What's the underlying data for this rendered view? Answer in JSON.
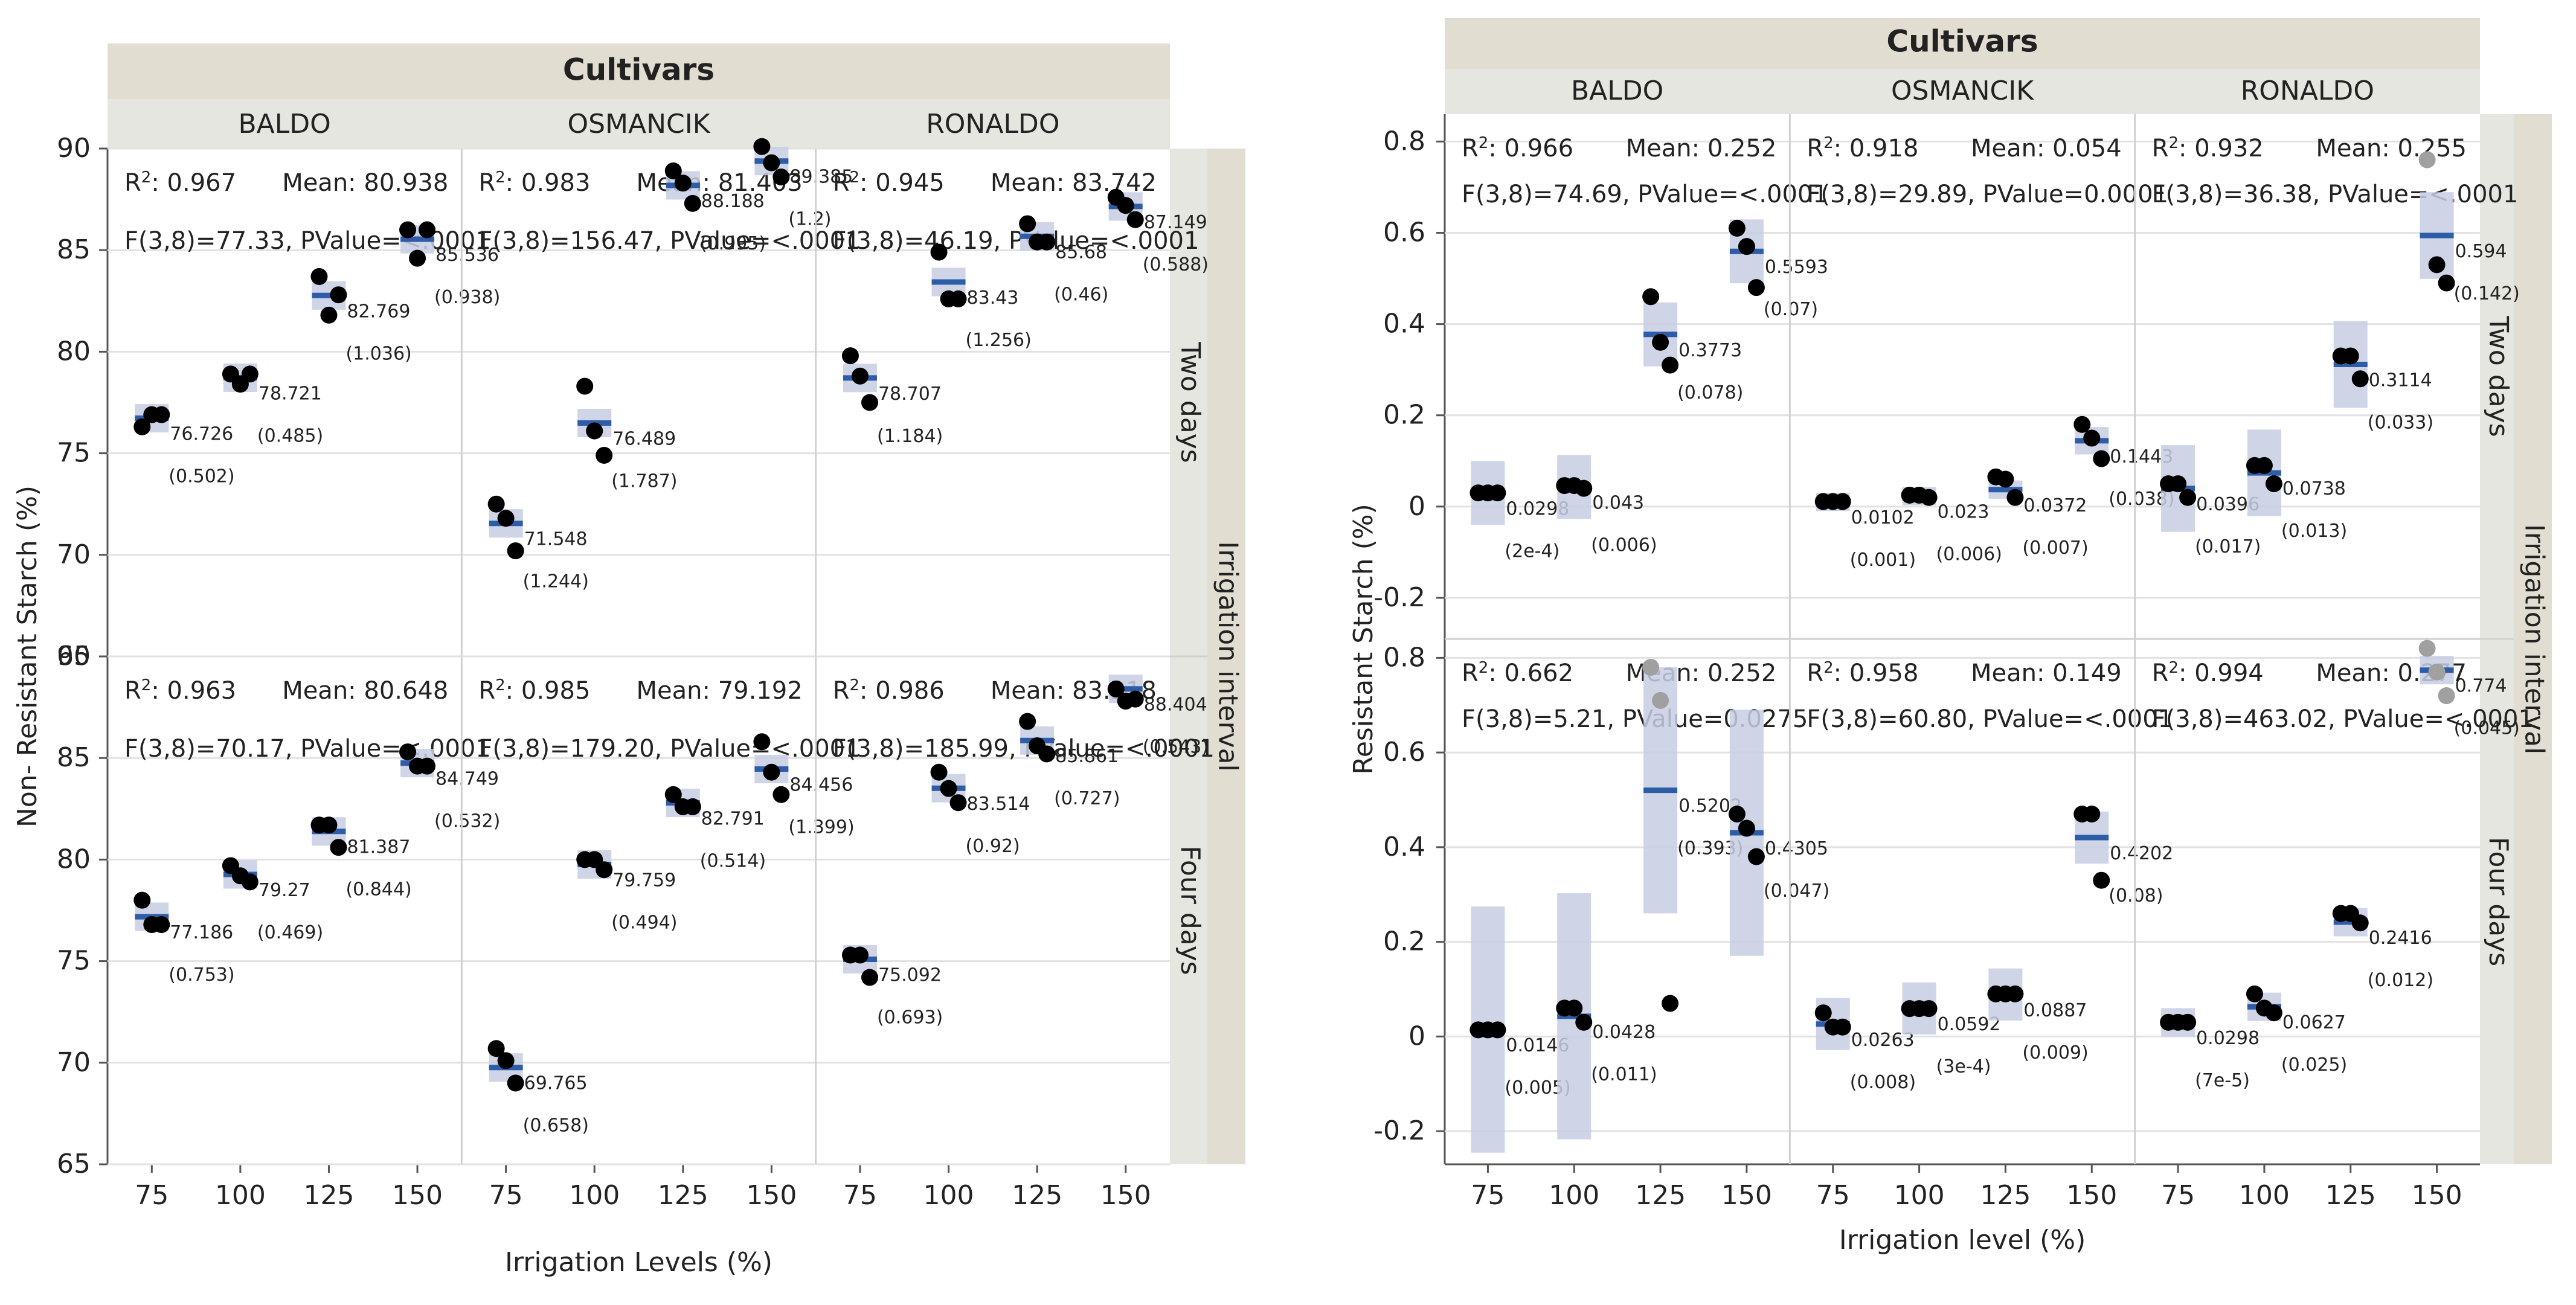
{
  "chart_data": [
    {
      "type": "scatter",
      "title": "Cultivars",
      "ylabel": "Non- Resistant Starch (%)",
      "xlabel": "Irrigation Levels (%)",
      "facet_row_title": "Irrigation interval",
      "cultivars": [
        "BALDO",
        "OSMANCIK",
        "RONALDO"
      ],
      "intervals": [
        "Two days",
        "Four days"
      ],
      "x_categories": [
        "75",
        "100",
        "125",
        "150"
      ],
      "ylim": [
        65,
        90
      ],
      "yticks": [
        "65",
        "70",
        "75",
        "80",
        "85",
        "90"
      ],
      "panels": [
        {
          "cultivar": "BALDO",
          "interval": "Two days",
          "r2": "0.967",
          "mean": "Mean: 80.938",
          "f": "F(3,8)=77.33, PValue=<.0001",
          "means": [
            76.726,
            78.721,
            82.769,
            85.536
          ],
          "labels": [
            "76.726",
            "78.721",
            "82.769",
            "85.536"
          ],
          "se_labels": [
            "(0.502)",
            "(0.485)",
            "(1.036)",
            "(0.938)"
          ],
          "points": [
            [
              76.3,
              76.9,
              76.9
            ],
            [
              78.9,
              78.4,
              78.9
            ],
            [
              83.7,
              81.8,
              82.8
            ],
            [
              86.0,
              84.6,
              86.0
            ]
          ]
        },
        {
          "cultivar": "OSMANCIK",
          "interval": "Two days",
          "r2": "0.983",
          "mean": "Mean: 81.403",
          "f": "F(3,8)=156.47, PValue=<.0001",
          "means": [
            71.548,
            76.489,
            88.188,
            89.385
          ],
          "labels": [
            "71.548",
            "76.489",
            "88.188",
            "89.385"
          ],
          "se_labels": [
            "(1.244)",
            "(1.787)",
            "(0.995)",
            "(1.2)"
          ],
          "points": [
            [
              72.5,
              71.8,
              70.2
            ],
            [
              78.3,
              76.1,
              74.9
            ],
            [
              88.9,
              88.3,
              87.3
            ],
            [
              90.1,
              89.3,
              88.6
            ]
          ]
        },
        {
          "cultivar": "RONALDO",
          "interval": "Two days",
          "r2": "0.945",
          "mean": "Mean: 83.742",
          "f": "F(3,8)=46.19, PValue=<.0001",
          "means": [
            78.707,
            83.43,
            85.68,
            87.149
          ],
          "labels": [
            "78.707",
            "83.43",
            "85.68",
            "87.149"
          ],
          "se_labels": [
            "(1.184)",
            "(1.256)",
            "(0.46)",
            "(0.588)"
          ],
          "points": [
            [
              79.8,
              78.8,
              77.5
            ],
            [
              84.9,
              82.6,
              82.6
            ],
            [
              86.3,
              85.4,
              85.4
            ],
            [
              87.6,
              87.2,
              86.5
            ]
          ]
        },
        {
          "cultivar": "BALDO",
          "interval": "Four days",
          "r2": "0.963",
          "mean": "Mean: 80.648",
          "f": "F(3,8)=70.17, PValue=<.0001",
          "means": [
            77.186,
            79.27,
            81.387,
            84.749
          ],
          "labels": [
            "77.186",
            "79.27",
            "81.387",
            "84.749"
          ],
          "se_labels": [
            "(0.753)",
            "(0.469)",
            "(0.844)",
            "(0.532)"
          ],
          "points": [
            [
              78.0,
              76.8,
              76.8
            ],
            [
              79.7,
              79.2,
              78.9
            ],
            [
              81.7,
              81.7,
              80.6
            ],
            [
              85.3,
              84.6,
              84.6
            ]
          ]
        },
        {
          "cultivar": "OSMANCIK",
          "interval": "Four days",
          "r2": "0.985",
          "mean": "Mean: 79.192",
          "f": "F(3,8)=179.20, PValue=<.0001",
          "means": [
            69.765,
            79.759,
            82.791,
            84.456
          ],
          "labels": [
            "69.765",
            "79.759",
            "82.791",
            "84.456"
          ],
          "se_labels": [
            "(0.658)",
            "(0.494)",
            "(0.514)",
            "(1.399)"
          ],
          "points": [
            [
              70.7,
              70.1,
              69.0
            ],
            [
              80.0,
              80.0,
              79.5
            ],
            [
              83.2,
              82.6,
              82.6
            ],
            [
              85.8,
              84.3,
              83.2
            ]
          ]
        },
        {
          "cultivar": "RONALDO",
          "interval": "Four days",
          "r2": "0.986",
          "mean": "Mean: 83.218",
          "f": "F(3,8)=185.99, PValue=<.0001",
          "means": [
            75.092,
            83.514,
            85.861,
            88.404
          ],
          "labels": [
            "75.092",
            "83.514",
            "85.861",
            "88.404"
          ],
          "se_labels": [
            "(0.693)",
            "(0.92)",
            "(0.727)",
            "(0.543)"
          ],
          "points": [
            [
              75.3,
              75.3,
              74.2
            ],
            [
              84.3,
              83.5,
              82.8
            ],
            [
              86.8,
              85.6,
              85.2
            ],
            [
              88.4,
              87.8,
              87.9
            ]
          ]
        }
      ]
    },
    {
      "type": "scatter",
      "title": "Cultivars",
      "ylabel": "Resistant Starch (%)",
      "xlabel": "Irrigation level (%)",
      "facet_row_title": "Irrigation interval",
      "cultivars": [
        "BALDO",
        "OSMANCIK",
        "RONALDO"
      ],
      "intervals": [
        "Two days",
        "Four days"
      ],
      "x_categories": [
        "75",
        "100",
        "125",
        "150"
      ],
      "row_ylims": [
        [
          -0.29,
          0.86
        ],
        [
          -0.27,
          0.84
        ]
      ],
      "row_yticks": [
        [
          "-0.2",
          "0",
          "0.2",
          "0.4",
          "0.6",
          "0.8"
        ],
        [
          "-0.2",
          "0",
          "0.2",
          "0.4",
          "0.6",
          "0.8"
        ]
      ],
      "panels": [
        {
          "cultivar": "BALDO",
          "interval": "Two days",
          "r2": "0.966",
          "mean": "Mean: 0.252",
          "f": "F(3,8)=74.69, PValue=<.0001",
          "means": [
            0.0298,
            0.043,
            0.3773,
            0.5593
          ],
          "labels": [
            "0.0298",
            "0.043",
            "0.3773",
            "0.5593"
          ],
          "se_labels": [
            "(2e-4)",
            "(0.006)",
            "(0.078)",
            "(0.07)"
          ],
          "ci_half": [
            0.07,
            0.07,
            0.07,
            0.07
          ],
          "points": [
            [
              0.03,
              0.03,
              0.03
            ],
            [
              0.046,
              0.046,
              0.04
            ],
            [
              0.46,
              0.36,
              0.31
            ],
            [
              0.61,
              0.57,
              0.48
            ]
          ]
        },
        {
          "cultivar": "OSMANCIK",
          "interval": "Two days",
          "r2": "0.918",
          "mean": "Mean: 0.054",
          "f": "F(3,8)=29.89, PValue=0.0001",
          "means": [
            0.0102,
            0.023,
            0.0372,
            0.1443
          ],
          "labels": [
            "0.0102",
            "0.023",
            "0.0372",
            "0.1443"
          ],
          "se_labels": [
            "(0.001)",
            "(0.006)",
            "(0.007)",
            "(0.038)"
          ],
          "ci_half": [
            0.02,
            0.02,
            0.02,
            0.03
          ],
          "points": [
            [
              0.011,
              0.011,
              0.011
            ],
            [
              0.025,
              0.025,
              0.02
            ],
            [
              0.065,
              0.06,
              0.02
            ],
            [
              0.18,
              0.15,
              0.105
            ]
          ]
        },
        {
          "cultivar": "RONALDO",
          "interval": "Two days",
          "r2": "0.932",
          "mean": "Mean: 0.255",
          "f": "F(3,8)=36.38, PValue=<.0001",
          "means": [
            0.0396,
            0.0738,
            0.3114,
            0.594
          ],
          "labels": [
            "0.0396",
            "0.0738",
            "0.3114",
            "0.594"
          ],
          "se_labels": [
            "(0.017)",
            "(0.013)",
            "(0.033)",
            "(0.142)"
          ],
          "ci_half": [
            0.095,
            0.095,
            0.095,
            0.095
          ],
          "points": [
            [
              0.05,
              0.05,
              0.02
            ],
            [
              0.09,
              0.09,
              0.05
            ],
            [
              0.33,
              0.33,
              0.28
            ],
            [
              0.76,
              0.53,
              0.49
            ]
          ],
          "outliers": [
            [
              3,
              0
            ]
          ]
        },
        {
          "cultivar": "BALDO",
          "interval": "Four days",
          "r2": "0.662",
          "mean": "Mean: 0.252",
          "f": "F(3,8)=5.21, PValue=0.0275",
          "means": [
            0.0146,
            0.0428,
            0.5202,
            0.4305
          ],
          "labels": [
            "0.0146",
            "0.0428",
            "0.5202",
            "0.4305"
          ],
          "se_labels": [
            "(0.005)",
            "(0.011)",
            "(0.393)",
            "(0.047)"
          ],
          "ci_half": [
            0.26,
            0.26,
            0.26,
            0.26
          ],
          "points": [
            [
              0.014,
              0.014,
              0.014
            ],
            [
              0.06,
              0.06,
              0.03
            ],
            [
              0.78,
              0.71,
              0.07
            ],
            [
              0.47,
              0.44,
              0.38
            ]
          ],
          "outliers": [
            [
              2,
              0
            ],
            [
              2,
              1
            ]
          ]
        },
        {
          "cultivar": "OSMANCIK",
          "interval": "Four days",
          "r2": "0.958",
          "mean": "Mean: 0.149",
          "f": "F(3,8)=60.80, PValue=<.0001",
          "means": [
            0.0263,
            0.0592,
            0.0887,
            0.4202
          ],
          "labels": [
            "0.0263",
            "0.0592",
            "0.0887",
            "0.4202"
          ],
          "se_labels": [
            "(0.008)",
            "(3e-4)",
            "(0.009)",
            "(0.08)"
          ],
          "ci_half": [
            0.055,
            0.055,
            0.055,
            0.055
          ],
          "points": [
            [
              0.05,
              0.02,
              0.02
            ],
            [
              0.059,
              0.059,
              0.059
            ],
            [
              0.09,
              0.09,
              0.09
            ],
            [
              0.47,
              0.47,
              0.33
            ]
          ]
        },
        {
          "cultivar": "RONALDO",
          "interval": "Four days",
          "r2": "0.994",
          "mean": "Mean: 0.277",
          "f": "F(3,8)=463.02, PValue=<.0001",
          "means": [
            0.0298,
            0.0627,
            0.2416,
            0.774
          ],
          "labels": [
            "0.0298",
            "0.0627",
            "0.2416",
            "0.774"
          ],
          "se_labels": [
            "(7e-5)",
            "(0.025)",
            "(0.012)",
            "(0.045)"
          ],
          "ci_half": [
            0.03,
            0.03,
            0.03,
            0.03
          ],
          "points": [
            [
              0.03,
              0.03,
              0.03
            ],
            [
              0.09,
              0.06,
              0.05
            ],
            [
              0.26,
              0.26,
              0.24
            ],
            [
              0.82,
              0.77,
              0.72
            ]
          ],
          "outliers": [
            [
              3,
              0
            ],
            [
              3,
              1
            ],
            [
              3,
              2
            ]
          ]
        }
      ]
    }
  ],
  "text": {
    "r2_prefix": "R",
    "r2_sup": "2",
    "r2_suffix": ": "
  }
}
